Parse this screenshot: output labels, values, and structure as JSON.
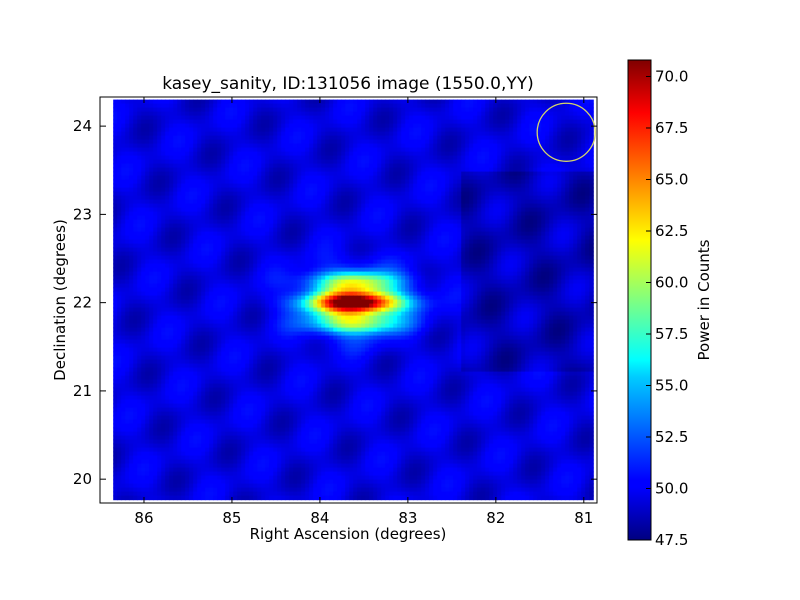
{
  "chart_data": {
    "type": "heatmap",
    "title": "kasey_sanity, ID:131056 image (1550.0,YY)",
    "xlabel": "Right Ascension (degrees)",
    "ylabel": "Declination (degrees)",
    "colorbar_label": "Power in Counts",
    "colormap": "jet",
    "xlim": [
      86.5,
      80.85
    ],
    "ylim": [
      19.73,
      24.33
    ],
    "x_inverted": true,
    "x_ticks": [
      86,
      85,
      84,
      83,
      82,
      81
    ],
    "y_ticks": [
      20,
      21,
      22,
      23,
      24
    ],
    "colorbar_range": [
      47.5,
      70.8
    ],
    "colorbar_ticks": [
      "47.5",
      "50.0",
      "52.5",
      "55.0",
      "57.5",
      "60.0",
      "62.5",
      "65.0",
      "67.5",
      "70.0"
    ],
    "background_level": 49.5,
    "peak": {
      "ra": 83.6,
      "dec": 22.0,
      "value": 70.8,
      "ra_width": 0.5,
      "dec_width": 0.28
    },
    "footprint": {
      "ra_range": [
        86.35,
        80.9
      ],
      "dec_range": [
        19.78,
        24.3
      ]
    },
    "beam_marker": {
      "ra": 81.2,
      "dec": 23.93,
      "radius_ra": 0.33,
      "color": "#d4d46a"
    },
    "grid": false
  }
}
